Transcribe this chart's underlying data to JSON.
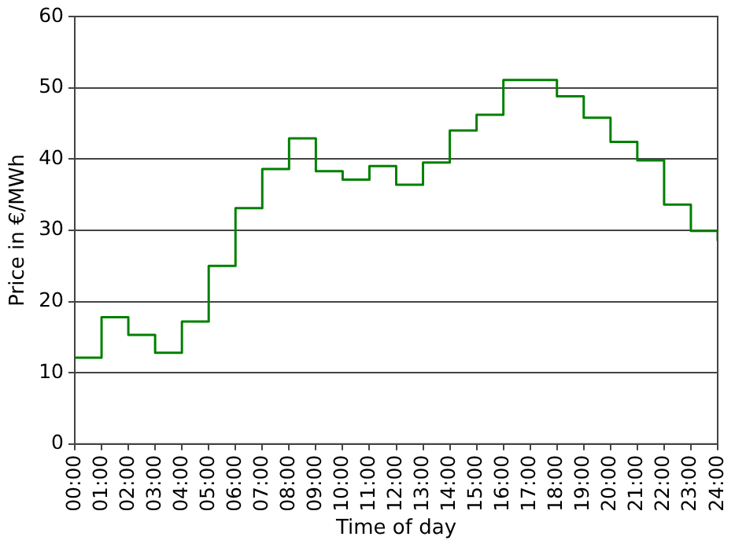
{
  "chart_data": {
    "type": "step",
    "xlabel": "Time of day",
    "ylabel": "Price in €/MWh",
    "x": [
      0,
      1,
      2,
      3,
      4,
      5,
      6,
      7,
      8,
      9,
      10,
      11,
      12,
      13,
      14,
      15,
      16,
      17,
      18,
      19,
      20,
      21,
      22,
      23,
      24
    ],
    "series": [
      {
        "color": "#008000",
        "values": [
          12.1,
          17.8,
          15.3,
          12.8,
          17.2,
          25.0,
          33.1,
          38.6,
          42.9,
          38.3,
          37.1,
          39.0,
          36.4,
          39.5,
          44.0,
          46.2,
          51.1,
          51.1,
          48.8,
          45.8,
          42.4,
          39.8,
          33.6,
          29.9,
          28.5
        ]
      }
    ],
    "xlim": [
      0,
      24
    ],
    "ylim": [
      0,
      60
    ],
    "yticks": [
      0,
      10,
      20,
      30,
      40,
      50,
      60
    ],
    "xticks": [
      {
        "value": 0,
        "label": "00:00"
      },
      {
        "value": 1,
        "label": "01:00"
      },
      {
        "value": 2,
        "label": "02:00"
      },
      {
        "value": 3,
        "label": "03:00"
      },
      {
        "value": 4,
        "label": "04:00"
      },
      {
        "value": 5,
        "label": "05:00"
      },
      {
        "value": 6,
        "label": "06:00"
      },
      {
        "value": 7,
        "label": "07:00"
      },
      {
        "value": 8,
        "label": "08:00"
      },
      {
        "value": 9,
        "label": "09:00"
      },
      {
        "value": 10,
        "label": "10:00"
      },
      {
        "value": 11,
        "label": "11:00"
      },
      {
        "value": 12,
        "label": "12:00"
      },
      {
        "value": 13,
        "label": "13:00"
      },
      {
        "value": 14,
        "label": "14:00"
      },
      {
        "value": 15,
        "label": "15:00"
      },
      {
        "value": 16,
        "label": "16:00"
      },
      {
        "value": 17,
        "label": "17:00"
      },
      {
        "value": 18,
        "label": "18:00"
      },
      {
        "value": 19,
        "label": "19:00"
      },
      {
        "value": 20,
        "label": "20:00"
      },
      {
        "value": 21,
        "label": "21:00"
      },
      {
        "value": 22,
        "label": "22:00"
      },
      {
        "value": 23,
        "label": "23:00"
      },
      {
        "value": 24,
        "label": "24:00"
      }
    ],
    "grid": "y",
    "legend": false
  }
}
